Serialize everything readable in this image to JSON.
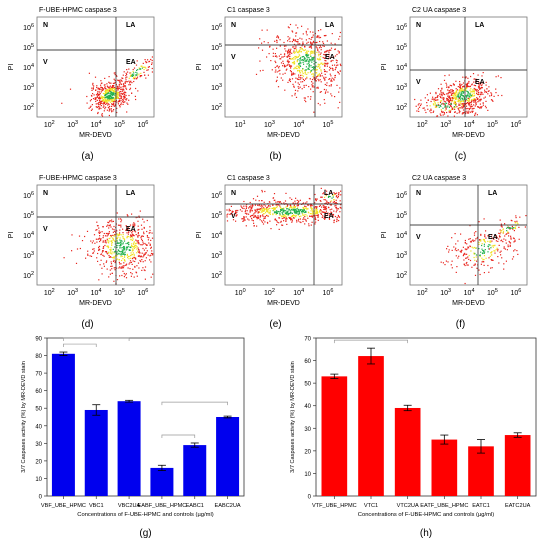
{
  "flow_panels": [
    {
      "letter": "(a)",
      "title": "F-UBE-HPMC caspase 3",
      "xlabel": "MR-DEVD",
      "ylabel": "PI",
      "xticks": [
        "10^2",
        "10^3",
        "10^4",
        "10^5",
        "10^6"
      ],
      "yticks": [
        "10^2",
        "10^3",
        "10^4",
        "10^5",
        "10^6"
      ],
      "quadrants": {
        "N": "N",
        "LA": "LA",
        "V": "V",
        "EA": "EA"
      }
    },
    {
      "letter": "(b)",
      "title": "C1 caspase 3",
      "xlabel": "MR-DEVD",
      "ylabel": "PI",
      "xticks": [
        "10^1",
        "10^3",
        "10^4",
        "10^5"
      ],
      "yticks": [
        "10^2",
        "10^3",
        "10^4",
        "10^5",
        "10^6"
      ],
      "quadrants": {
        "N": "N",
        "LA": "LA",
        "V": "V",
        "EA": "EA"
      }
    },
    {
      "letter": "(c)",
      "title": "C2 UA caspase 3",
      "xlabel": "MR-DEVD",
      "ylabel": "PI",
      "xticks": [
        "10^2",
        "10^3",
        "10^4",
        "10^5",
        "10^6"
      ],
      "yticks": [
        "10^2",
        "10^3",
        "10^4",
        "10^5",
        "10^6"
      ],
      "quadrants": {
        "N": "N",
        "LA": "LA",
        "V": "V",
        "EA": "EA"
      }
    },
    {
      "letter": "(d)",
      "title": "F-UBE-HPMC caspase 3",
      "xlabel": "MR-DEVD",
      "ylabel": "PI",
      "xticks": [
        "10^2",
        "10^3",
        "10^4",
        "10^5",
        "10^6"
      ],
      "yticks": [
        "10^2",
        "10^3",
        "10^4",
        "10^5",
        "10^6"
      ],
      "quadrants": {
        "N": "N",
        "LA": "LA",
        "V": "V",
        "EA": "EA"
      }
    },
    {
      "letter": "(e)",
      "title": "C1 caspase 3",
      "xlabel": "MR-DEVD",
      "ylabel": "PI",
      "xticks": [
        "10^0",
        "10^2",
        "10^4",
        "10^6"
      ],
      "yticks": [
        "10^2",
        "10^3",
        "10^4",
        "10^5",
        "10^6"
      ],
      "quadrants": {
        "N": "N",
        "LA": "LA",
        "V": "V",
        "EA": "EA"
      }
    },
    {
      "letter": "(f)",
      "title": "C2 UA caspase 3",
      "xlabel": "MR-DEVD",
      "ylabel": "PI",
      "xticks": [
        "10^2",
        "10^3",
        "10^4",
        "10^5",
        "10^6"
      ],
      "yticks": [
        "10^2",
        "10^3",
        "10^4",
        "10^5",
        "10^6"
      ],
      "quadrants": {
        "N": "N",
        "LA": "LA",
        "V": "V",
        "EA": "EA"
      }
    }
  ],
  "chart_data": [
    {
      "type": "bar",
      "panel": "(g)",
      "categories": [
        "VBF_UBE_HPMC",
        "VBC1",
        "VBC2UA",
        "EABF_UBE_HPMC",
        "EABC1",
        "EABC2UA"
      ],
      "values": [
        81,
        49,
        54,
        16,
        29,
        45
      ],
      "errors": [
        1,
        3,
        0.5,
        1.5,
        1.2,
        0.5
      ],
      "color": "#0000ee",
      "xlabel": "Concentrations of F-UBE-HPMC and controls (µg/ml)",
      "ylabel": "3/7 Caspases activity (%) by MR-DEVD stain",
      "ylim": [
        0,
        90
      ],
      "yticks": [
        0,
        10,
        20,
        30,
        40,
        50,
        60,
        70,
        80,
        90
      ],
      "grid": false,
      "brackets": [
        [
          0,
          1
        ],
        [
          0,
          2
        ],
        [
          3,
          4
        ],
        [
          3,
          5
        ]
      ]
    },
    {
      "type": "bar",
      "panel": "(h)",
      "categories": [
        "VTF_UBE_HPMC",
        "VTC1",
        "VTC2UA",
        "EATF_UBE_HPMC",
        "EATC1",
        "EATC2UA"
      ],
      "values": [
        53,
        62,
        39,
        25,
        22,
        27
      ],
      "errors": [
        1,
        3.5,
        1.2,
        2,
        3,
        1
      ],
      "color": "#ff0000",
      "xlabel": "Concentrations of F-UBE-HPMC and controls (µg/ml)",
      "ylabel": "3/7 Caspases activity (%) by MR-DEVD stain",
      "ylim": [
        0,
        70
      ],
      "yticks": [
        0,
        10,
        20,
        30,
        40,
        50,
        60,
        70
      ],
      "grid": false,
      "brackets": [
        [
          0,
          2
        ]
      ]
    }
  ],
  "bar_panel_letters": [
    "(g)",
    "(h)"
  ],
  "colors": {
    "scatter_red": "#e8231c",
    "scatter_yellow": "#f0e020",
    "scatter_green": "#22b14c",
    "gate_line": "#444444"
  }
}
